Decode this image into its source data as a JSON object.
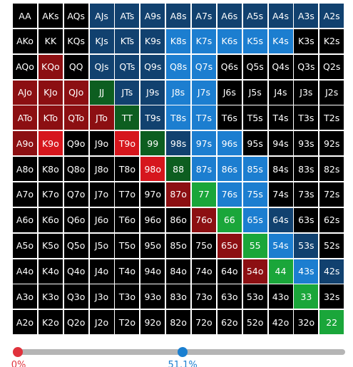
{
  "grid": {
    "rows": [
      [
        {
          "label": "AA",
          "color": "#000000"
        },
        {
          "label": "AKs",
          "color": "#000000"
        },
        {
          "label": "AQs",
          "color": "#000000"
        },
        {
          "label": "AJs",
          "color": "#11416f"
        },
        {
          "label": "ATs",
          "color": "#11416f"
        },
        {
          "label": "A9s",
          "color": "#11416f"
        },
        {
          "label": "A8s",
          "color": "#11416f"
        },
        {
          "label": "A7s",
          "color": "#11416f"
        },
        {
          "label": "A6s",
          "color": "#11416f"
        },
        {
          "label": "A5s",
          "color": "#11416f"
        },
        {
          "label": "A4s",
          "color": "#11416f"
        },
        {
          "label": "A3s",
          "color": "#11416f"
        },
        {
          "label": "A2s",
          "color": "#11416f"
        }
      ],
      [
        {
          "label": "AKo",
          "color": "#000000"
        },
        {
          "label": "KK",
          "color": "#000000"
        },
        {
          "label": "KQs",
          "color": "#000000"
        },
        {
          "label": "KJs",
          "color": "#11416f"
        },
        {
          "label": "KTs",
          "color": "#11416f"
        },
        {
          "label": "K9s",
          "color": "#11416f"
        },
        {
          "label": "K8s",
          "color": "#1c7ed0"
        },
        {
          "label": "K7s",
          "color": "#1c7ed0"
        },
        {
          "label": "K6s",
          "color": "#1c7ed0"
        },
        {
          "label": "K5s",
          "color": "#1c7ed0"
        },
        {
          "label": "K4s",
          "color": "#1c7ed0"
        },
        {
          "label": "K3s",
          "color": "#000000"
        },
        {
          "label": "K2s",
          "color": "#000000"
        }
      ],
      [
        {
          "label": "AQo",
          "color": "#000000"
        },
        {
          "label": "KQo",
          "color": "#8c0f12"
        },
        {
          "label": "QQ",
          "color": "#000000"
        },
        {
          "label": "QJs",
          "color": "#11416f"
        },
        {
          "label": "QTs",
          "color": "#11416f"
        },
        {
          "label": "Q9s",
          "color": "#11416f"
        },
        {
          "label": "Q8s",
          "color": "#1c7ed0"
        },
        {
          "label": "Q7s",
          "color": "#1c7ed0"
        },
        {
          "label": "Q6s",
          "color": "#000000"
        },
        {
          "label": "Q5s",
          "color": "#000000"
        },
        {
          "label": "Q4s",
          "color": "#000000"
        },
        {
          "label": "Q3s",
          "color": "#000000"
        },
        {
          "label": "Q2s",
          "color": "#000000"
        }
      ],
      [
        {
          "label": "AJo",
          "color": "#8c0f12"
        },
        {
          "label": "KJo",
          "color": "#8c0f12"
        },
        {
          "label": "QJo",
          "color": "#8c0f12"
        },
        {
          "label": "JJ",
          "color": "#0d5e20"
        },
        {
          "label": "JTs",
          "color": "#11416f"
        },
        {
          "label": "J9s",
          "color": "#11416f"
        },
        {
          "label": "J8s",
          "color": "#1c7ed0"
        },
        {
          "label": "J7s",
          "color": "#1c7ed0"
        },
        {
          "label": "J6s",
          "color": "#000000"
        },
        {
          "label": "J5s",
          "color": "#000000"
        },
        {
          "label": "J4s",
          "color": "#000000"
        },
        {
          "label": "J3s",
          "color": "#000000"
        },
        {
          "label": "J2s",
          "color": "#000000"
        }
      ],
      [
        {
          "label": "ATo",
          "color": "#8c0f12"
        },
        {
          "label": "KTo",
          "color": "#8c0f12"
        },
        {
          "label": "QTo",
          "color": "#8c0f12"
        },
        {
          "label": "JTo",
          "color": "#8c0f12"
        },
        {
          "label": "TT",
          "color": "#0d5e20"
        },
        {
          "label": "T9s",
          "color": "#11416f"
        },
        {
          "label": "T8s",
          "color": "#1c7ed0"
        },
        {
          "label": "T7s",
          "color": "#1c7ed0"
        },
        {
          "label": "T6s",
          "color": "#000000"
        },
        {
          "label": "T5s",
          "color": "#000000"
        },
        {
          "label": "T4s",
          "color": "#000000"
        },
        {
          "label": "T3s",
          "color": "#000000"
        },
        {
          "label": "T2s",
          "color": "#000000"
        }
      ],
      [
        {
          "label": "A9o",
          "color": "#8c0f12"
        },
        {
          "label": "K9o",
          "color": "#d6161d"
        },
        {
          "label": "Q9o",
          "color": "#000000"
        },
        {
          "label": "J9o",
          "color": "#000000"
        },
        {
          "label": "T9o",
          "color": "#d6161d"
        },
        {
          "label": "99",
          "color": "#0d5e20"
        },
        {
          "label": "98s",
          "color": "#11416f"
        },
        {
          "label": "97s",
          "color": "#1c7ed0"
        },
        {
          "label": "96s",
          "color": "#1c7ed0"
        },
        {
          "label": "95s",
          "color": "#000000"
        },
        {
          "label": "94s",
          "color": "#000000"
        },
        {
          "label": "93s",
          "color": "#000000"
        },
        {
          "label": "92s",
          "color": "#000000"
        }
      ],
      [
        {
          "label": "A8o",
          "color": "#000000"
        },
        {
          "label": "K8o",
          "color": "#000000"
        },
        {
          "label": "Q8o",
          "color": "#000000"
        },
        {
          "label": "J8o",
          "color": "#000000"
        },
        {
          "label": "T8o",
          "color": "#000000"
        },
        {
          "label": "98o",
          "color": "#d6161d"
        },
        {
          "label": "88",
          "color": "#0d5e20"
        },
        {
          "label": "87s",
          "color": "#1c7ed0"
        },
        {
          "label": "86s",
          "color": "#1c7ed0"
        },
        {
          "label": "85s",
          "color": "#1c7ed0"
        },
        {
          "label": "84s",
          "color": "#000000"
        },
        {
          "label": "83s",
          "color": "#000000"
        },
        {
          "label": "82s",
          "color": "#000000"
        }
      ],
      [
        {
          "label": "A7o",
          "color": "#000000"
        },
        {
          "label": "K7o",
          "color": "#000000"
        },
        {
          "label": "Q7o",
          "color": "#000000"
        },
        {
          "label": "J7o",
          "color": "#000000"
        },
        {
          "label": "T7o",
          "color": "#000000"
        },
        {
          "label": "97o",
          "color": "#000000"
        },
        {
          "label": "87o",
          "color": "#8c0f12"
        },
        {
          "label": "77",
          "color": "#1aa63a"
        },
        {
          "label": "76s",
          "color": "#1c7ed0"
        },
        {
          "label": "75s",
          "color": "#1c7ed0"
        },
        {
          "label": "74s",
          "color": "#000000"
        },
        {
          "label": "73s",
          "color": "#000000"
        },
        {
          "label": "72s",
          "color": "#000000"
        }
      ],
      [
        {
          "label": "A6o",
          "color": "#000000"
        },
        {
          "label": "K6o",
          "color": "#000000"
        },
        {
          "label": "Q6o",
          "color": "#000000"
        },
        {
          "label": "J6o",
          "color": "#000000"
        },
        {
          "label": "T6o",
          "color": "#000000"
        },
        {
          "label": "96o",
          "color": "#000000"
        },
        {
          "label": "86o",
          "color": "#000000"
        },
        {
          "label": "76o",
          "color": "#8c0f12"
        },
        {
          "label": "66",
          "color": "#1aa63a"
        },
        {
          "label": "65s",
          "color": "#1c7ed0"
        },
        {
          "label": "64s",
          "color": "#11416f"
        },
        {
          "label": "63s",
          "color": "#000000"
        },
        {
          "label": "62s",
          "color": "#000000"
        }
      ],
      [
        {
          "label": "A5o",
          "color": "#000000"
        },
        {
          "label": "K5o",
          "color": "#000000"
        },
        {
          "label": "Q5o",
          "color": "#000000"
        },
        {
          "label": "J5o",
          "color": "#000000"
        },
        {
          "label": "T5o",
          "color": "#000000"
        },
        {
          "label": "95o",
          "color": "#000000"
        },
        {
          "label": "85o",
          "color": "#000000"
        },
        {
          "label": "75o",
          "color": "#000000"
        },
        {
          "label": "65o",
          "color": "#8c0f12"
        },
        {
          "label": "55",
          "color": "#1aa63a"
        },
        {
          "label": "54s",
          "color": "#1c7ed0"
        },
        {
          "label": "53s",
          "color": "#11416f"
        },
        {
          "label": "52s",
          "color": "#000000"
        }
      ],
      [
        {
          "label": "A4o",
          "color": "#000000"
        },
        {
          "label": "K4o",
          "color": "#000000"
        },
        {
          "label": "Q4o",
          "color": "#000000"
        },
        {
          "label": "J4o",
          "color": "#000000"
        },
        {
          "label": "T4o",
          "color": "#000000"
        },
        {
          "label": "94o",
          "color": "#000000"
        },
        {
          "label": "84o",
          "color": "#000000"
        },
        {
          "label": "74o",
          "color": "#000000"
        },
        {
          "label": "64o",
          "color": "#000000"
        },
        {
          "label": "54o",
          "color": "#8c0f12"
        },
        {
          "label": "44",
          "color": "#1aa63a"
        },
        {
          "label": "43s",
          "color": "#1c7ed0"
        },
        {
          "label": "42s",
          "color": "#11416f"
        }
      ],
      [
        {
          "label": "A3o",
          "color": "#000000"
        },
        {
          "label": "K3o",
          "color": "#000000"
        },
        {
          "label": "Q3o",
          "color": "#000000"
        },
        {
          "label": "J3o",
          "color": "#000000"
        },
        {
          "label": "T3o",
          "color": "#000000"
        },
        {
          "label": "93o",
          "color": "#000000"
        },
        {
          "label": "83o",
          "color": "#000000"
        },
        {
          "label": "73o",
          "color": "#000000"
        },
        {
          "label": "63o",
          "color": "#000000"
        },
        {
          "label": "53o",
          "color": "#000000"
        },
        {
          "label": "43o",
          "color": "#000000"
        },
        {
          "label": "33",
          "color": "#1aa63a"
        },
        {
          "label": "32s",
          "color": "#000000"
        }
      ],
      [
        {
          "label": "A2o",
          "color": "#000000"
        },
        {
          "label": "K2o",
          "color": "#000000"
        },
        {
          "label": "Q2o",
          "color": "#000000"
        },
        {
          "label": "J2o",
          "color": "#000000"
        },
        {
          "label": "T2o",
          "color": "#000000"
        },
        {
          "label": "92o",
          "color": "#000000"
        },
        {
          "label": "82o",
          "color": "#000000"
        },
        {
          "label": "72o",
          "color": "#000000"
        },
        {
          "label": "62o",
          "color": "#000000"
        },
        {
          "label": "52o",
          "color": "#000000"
        },
        {
          "label": "42o",
          "color": "#000000"
        },
        {
          "label": "32o",
          "color": "#000000"
        },
        {
          "label": "22",
          "color": "#1aa63a"
        }
      ]
    ]
  },
  "slider": {
    "min": 0,
    "min_label": "0%",
    "min_color": "#e0323c",
    "value": 51.1,
    "value_label": "51.1%",
    "value_color": "#1a7fd0"
  }
}
